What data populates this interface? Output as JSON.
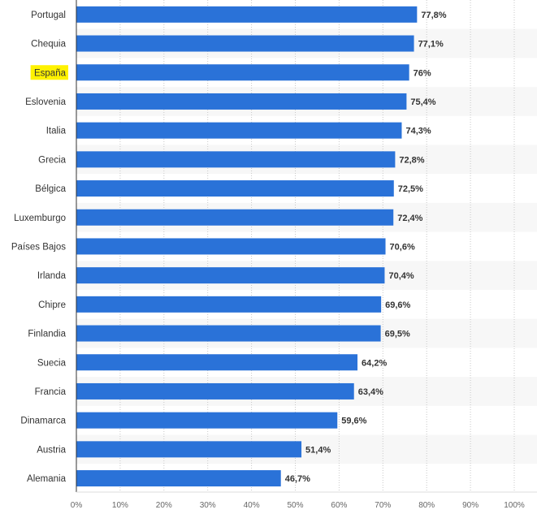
{
  "chart_data": {
    "type": "bar",
    "orientation": "horizontal",
    "categories": [
      "Portugal",
      "Chequia",
      "España",
      "Eslovenia",
      "Italia",
      "Grecia",
      "Bélgica",
      "Luxemburgo",
      "Países Bajos",
      "Irlanda",
      "Chipre",
      "Finlandia",
      "Suecia",
      "Francia",
      "Dinamarca",
      "Austria",
      "Alemania"
    ],
    "values": [
      77.8,
      77.1,
      76,
      75.4,
      74.3,
      72.8,
      72.5,
      72.4,
      70.6,
      70.4,
      69.6,
      69.5,
      64.2,
      63.4,
      59.6,
      51.4,
      46.7
    ],
    "value_labels": [
      "77,8%",
      "77,1%",
      "76%",
      "75,4%",
      "74,3%",
      "72,8%",
      "72,5%",
      "72,4%",
      "70,6%",
      "70,4%",
      "69,6%",
      "69,5%",
      "64,2%",
      "63,4%",
      "59,6%",
      "51,4%",
      "46,7%"
    ],
    "highlighted_category": "España",
    "xlim": [
      0,
      100
    ],
    "x_ticks": [
      "0%",
      "10%",
      "20%",
      "30%",
      "40%",
      "50%",
      "60%",
      "70%",
      "80%",
      "90%",
      "100%"
    ],
    "grid": true,
    "colors": {
      "bar": "#2a72d8",
      "highlight": "#fff200",
      "grid": "#c8c8c8",
      "stripe": "#f7f7f7",
      "axis": "#333333"
    }
  }
}
